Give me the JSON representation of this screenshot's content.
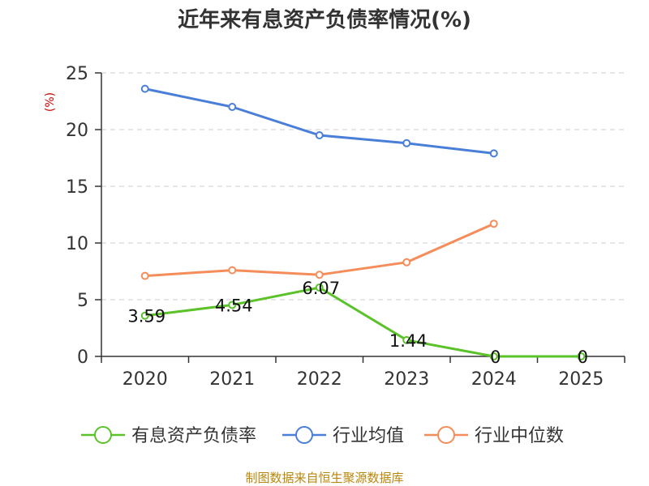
{
  "chart_data": {
    "type": "line",
    "title": "近年来有息资产负债率情况(%)",
    "ylabel": "(%)",
    "xlabel": "",
    "categories": [
      "2020",
      "2021",
      "2022",
      "2023",
      "2024",
      "2025"
    ],
    "ylim": [
      0,
      25
    ],
    "yticks": [
      0,
      5,
      10,
      15,
      20,
      25
    ],
    "grid": true,
    "legend_position": "bottom",
    "series": [
      {
        "name": "有息资产负债率",
        "color": "#5bc22a",
        "values": [
          3.59,
          4.54,
          6.07,
          1.44,
          0,
          0
        ],
        "labels": [
          "3.59",
          "4.54",
          "6.07",
          "1.44",
          "0",
          "0"
        ]
      },
      {
        "name": "行业均值",
        "color": "#4a7fd9",
        "values": [
          23.6,
          22.0,
          19.5,
          18.8,
          17.9,
          null
        ]
      },
      {
        "name": "行业中位数",
        "color": "#f58d5a",
        "values": [
          7.1,
          7.6,
          7.2,
          8.3,
          11.7,
          null
        ]
      }
    ],
    "source": "制图数据来自恒生聚源数据库"
  }
}
